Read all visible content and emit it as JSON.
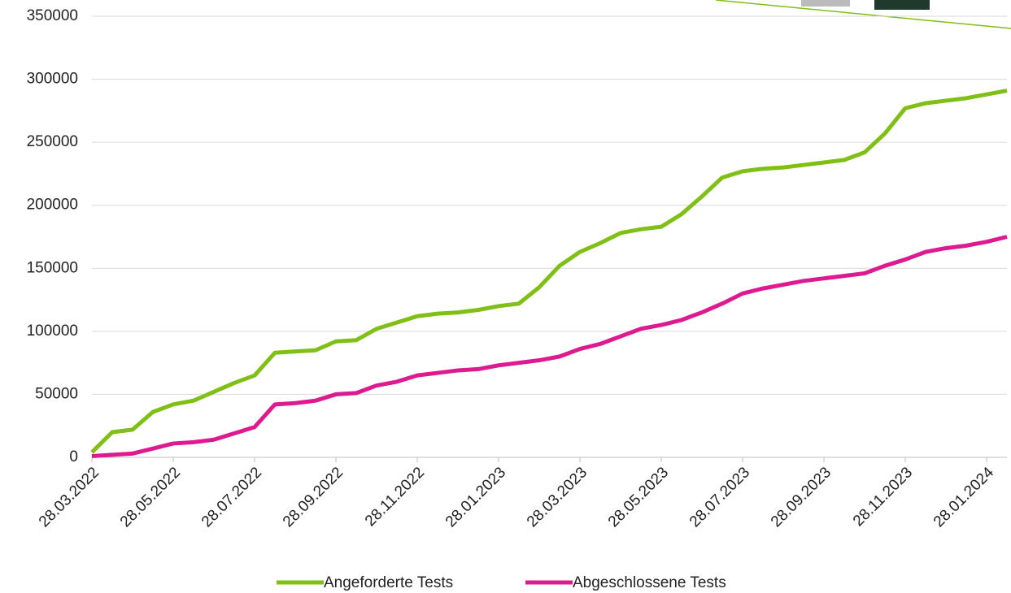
{
  "chart_data": {
    "type": "line",
    "categories": [
      "28.03.2022",
      null,
      null,
      null,
      "28.05.2022",
      null,
      null,
      null,
      "28.07.2022",
      null,
      null,
      null,
      "28.09.2022",
      null,
      null,
      null,
      "28.11.2022",
      null,
      null,
      null,
      "28.01.2023",
      null,
      null,
      null,
      "28.03.2023",
      null,
      null,
      null,
      "28.05.2023",
      null,
      null,
      null,
      "28.07.2023",
      null,
      null,
      null,
      "28.09.2023",
      null,
      null,
      null,
      "28.11.2023",
      null,
      null,
      null,
      "28.01.2024",
      null
    ],
    "series": [
      {
        "name": "Angeforderte Tests",
        "color": "#7fbf16",
        "values": [
          4000,
          20000,
          22000,
          36000,
          42000,
          45000,
          52000,
          59000,
          65000,
          83000,
          84000,
          85000,
          92000,
          93000,
          102000,
          107000,
          112000,
          114000,
          115000,
          117000,
          120000,
          122000,
          135000,
          152000,
          163000,
          170000,
          178000,
          181000,
          183000,
          193000,
          207000,
          222000,
          227000,
          229000,
          230000,
          232000,
          234000,
          236000,
          242000,
          257000,
          277000,
          281000,
          283000,
          285000,
          288000,
          291000
        ]
      },
      {
        "name": "Abgeschlossene Tests",
        "color": "#dd1a8f",
        "values": [
          1000,
          2000,
          3000,
          7000,
          11000,
          12000,
          14000,
          19000,
          24000,
          42000,
          43000,
          45000,
          50000,
          51000,
          57000,
          60000,
          65000,
          67000,
          69000,
          70000,
          73000,
          75000,
          77000,
          80000,
          86000,
          90000,
          96000,
          102000,
          105000,
          109000,
          115000,
          122000,
          130000,
          134000,
          137000,
          140000,
          142000,
          144000,
          146000,
          152000,
          157000,
          163000,
          166000,
          168000,
          171000,
          175000
        ]
      }
    ],
    "ylim": [
      0,
      350000
    ],
    "yticks": [
      0,
      50000,
      100000,
      150000,
      200000,
      250000,
      300000,
      350000
    ],
    "grid": true,
    "legend": "bottom"
  }
}
